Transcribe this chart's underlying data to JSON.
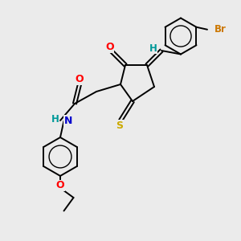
{
  "bg_color": "#ebebeb",
  "atom_colors": {
    "C": "#000000",
    "N": "#0000cc",
    "O": "#ff0000",
    "S": "#ccaa00",
    "Br": "#cc7700",
    "H": "#009999"
  },
  "bond_color": "#000000"
}
